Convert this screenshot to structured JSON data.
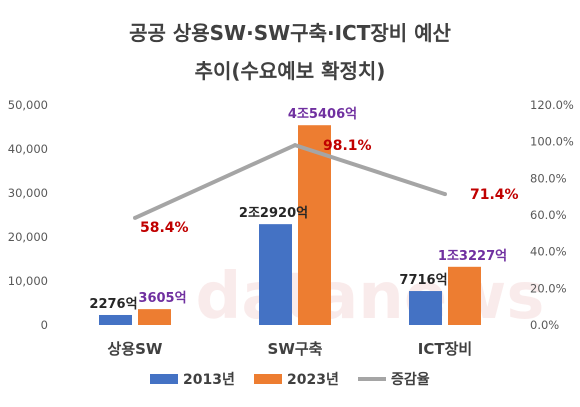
{
  "chart_data": {
    "type": "bar",
    "title_line1": "공공 상용SW·SW구축·ICT장비 예산",
    "title_line2": "추이(수요예보 확정치)",
    "categories": [
      "상용SW",
      "SW구축",
      "ICT장비"
    ],
    "series": [
      {
        "name": "2013년",
        "values": [
          2276,
          22920,
          7716
        ],
        "labels": [
          "2276억",
          "2조2920억",
          "7716억"
        ],
        "color": "#4472c4"
      },
      {
        "name": "2023년",
        "values": [
          3605,
          45406,
          13227
        ],
        "labels": [
          "3605억",
          "4조5406억",
          "1조3227억"
        ],
        "color": "#ed7d31"
      }
    ],
    "line_series": {
      "name": "증감율",
      "values": [
        58.4,
        98.1,
        71.4
      ],
      "labels": [
        "58.4%",
        "98.1%",
        "71.4%"
      ],
      "color": "#a5a5a5",
      "label_color": "#c00000"
    },
    "label_color_2023": "#7030a0",
    "y_left": {
      "min": 0,
      "max": 50000,
      "ticks": [
        "0",
        "10,000",
        "20,000",
        "30,000",
        "40,000",
        "50,000"
      ]
    },
    "y_right": {
      "min": 0,
      "max": 120,
      "ticks": [
        "0.0%",
        "20.0%",
        "40.0%",
        "60.0%",
        "80.0%",
        "100.0%",
        "120.0%"
      ]
    },
    "watermark": "datanews",
    "legend_position": "bottom"
  }
}
